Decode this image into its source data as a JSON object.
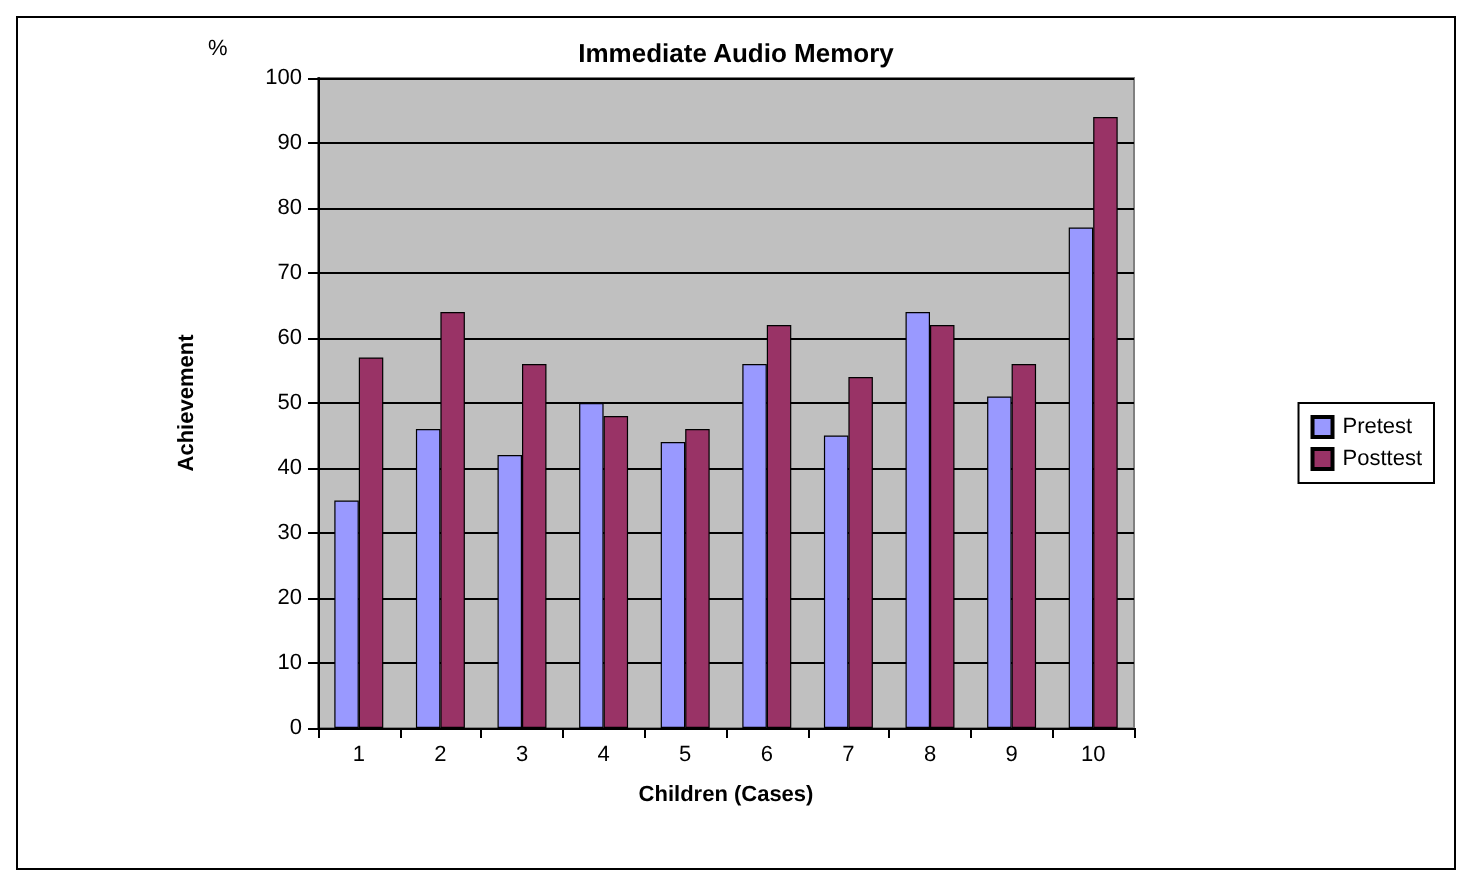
{
  "chart_data": {
    "type": "bar",
    "title": "Immediate Audio Memory",
    "xlabel": "Children (Cases)",
    "ylabel": "Achievement",
    "annotations": [
      "%"
    ],
    "categories": [
      "1",
      "2",
      "3",
      "4",
      "5",
      "6",
      "7",
      "8",
      "9",
      "10"
    ],
    "series": [
      {
        "name": "Pretest",
        "color": "#9999ff",
        "values": [
          35,
          46,
          42,
          50,
          44,
          56,
          45,
          64,
          51,
          77
        ]
      },
      {
        "name": "Posttest",
        "color": "#993366",
        "values": [
          57,
          64,
          56,
          48,
          46,
          62,
          54,
          62,
          56,
          94
        ]
      }
    ],
    "ylim": [
      0,
      100
    ],
    "yticks": [
      0,
      10,
      20,
      30,
      40,
      50,
      60,
      70,
      80,
      90,
      100
    ],
    "grid": "y",
    "legend": "right"
  }
}
